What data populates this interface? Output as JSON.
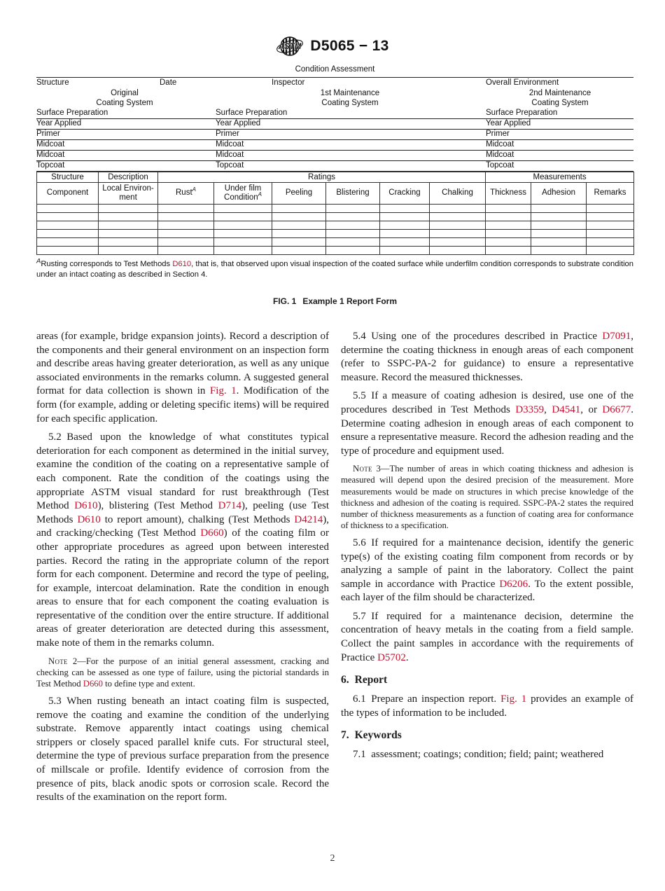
{
  "masthead": {
    "designation": "D5065 − 13"
  },
  "report_form": {
    "title": "Condition Assessment",
    "header_fields": [
      "Structure",
      "Date",
      "Inspector",
      "Overall Environment"
    ],
    "system_headers": [
      {
        "line1": "Original",
        "line2": "Coating System"
      },
      {
        "line1": "1st Maintenance",
        "line2": "Coating System"
      },
      {
        "line1": "2nd Maintenance",
        "line2": "Coating System"
      }
    ],
    "fill_rows": [
      [
        "Surface Preparation",
        "Surface Preparation",
        "Surface Preparation"
      ],
      [
        "Year Applied",
        "Year Applied",
        "Year Applied"
      ],
      [
        "Primer",
        "Primer",
        "Primer"
      ],
      [
        "Midcoat",
        "Midcoat",
        "Midcoat"
      ],
      [
        "Midcoat",
        "Midcoat",
        "Midcoat"
      ],
      [
        "Topcoat",
        "Topcoat",
        "Topcoat"
      ]
    ]
  },
  "ratings_table": {
    "group_headers": [
      "Structure",
      "Description",
      "Ratings",
      "Measurements"
    ],
    "columns": [
      {
        "l1": "Component"
      },
      {
        "l1": "Local Environ-",
        "l2": "ment"
      },
      {
        "l1": "Rust",
        "sup1": "A"
      },
      {
        "l1": "Under film",
        "l2": "Condition",
        "sup2": "A"
      },
      {
        "l1": "Peeling"
      },
      {
        "l1": "Blistering"
      },
      {
        "l1": "Cracking"
      },
      {
        "l1": "Chalking"
      },
      {
        "l1": "Thickness"
      },
      {
        "l1": "Adhesion"
      },
      {
        "l1": "Remarks"
      }
    ],
    "empty_rows": 6
  },
  "footnote": {
    "segments": [
      {
        "t": "A",
        "sup": true
      },
      {
        "t": "Rusting corresponds to Test Methods "
      },
      {
        "t": "D610",
        "link": true
      },
      {
        "t": ", that is, that observed upon visual inspection of the coated surface while underfilm condition corresponds to substrate condition under an intact coating as described in Section 4."
      }
    ]
  },
  "figure_caption": {
    "fig": "FIG. 1",
    "text": "Example 1 Report Form"
  },
  "body": {
    "left": [
      {
        "kind": "cont",
        "segments": [
          {
            "t": "areas (for example, bridge expansion joints). Record a description of the components and their general environment on an inspection form and describe areas having greater deterioration, as well as any unique associated environments in the remarks column. A suggested general format for data collection is shown in "
          },
          {
            "t": "Fig. 1",
            "link": true
          },
          {
            "t": ". Modification of the form (for example, adding or deleting specific items) will be required for each specific application."
          }
        ]
      },
      {
        "kind": "para",
        "segments": [
          {
            "t": "5.2 Based upon the knowledge of what constitutes typical deterioration for each component as determined in the initial survey, examine the condition of the coating on a representative sample of each component. Rate the condition of the coatings using the appropriate ASTM visual standard for rust breakthrough (Test Method "
          },
          {
            "t": "D610",
            "link": true
          },
          {
            "t": "), blistering (Test Method "
          },
          {
            "t": "D714",
            "link": true
          },
          {
            "t": "), peeling (use Test Methods "
          },
          {
            "t": "D610",
            "link": true
          },
          {
            "t": " to report amount), chalking (Test Methods "
          },
          {
            "t": "D4214",
            "link": true
          },
          {
            "t": "), and cracking/checking (Test Method "
          },
          {
            "t": "D660",
            "link": true
          },
          {
            "t": ") of the coating film or other appropriate procedures as agreed upon between interested parties. Record the rating in the appropriate column of the report form for each component. Determine and record the type of peeling, for example, intercoat delamination. Rate the condition in enough areas to ensure that for each component the coating evaluation is representative of the condition over the entire structure. If additional areas of greater deterioration are detected during this assessment, make note of them in the remarks column."
          }
        ]
      },
      {
        "kind": "note",
        "segments": [
          {
            "t": "Note",
            "sc": true
          },
          {
            "t": " 2—For the purpose of an initial general assessment, cracking and checking can be assessed as one type of failure, using the pictorial standards in Test Method "
          },
          {
            "t": "D660",
            "link": true
          },
          {
            "t": " to define type and extent."
          }
        ]
      },
      {
        "kind": "para",
        "segments": [
          {
            "t": "5.3 When rusting beneath an intact coating film is suspected, remove the coating and examine the condition of the underlying substrate. Remove apparently intact coatings using chemical strippers or closely spaced parallel knife cuts. For structural steel, determine the type of previous surface preparation from the presence of millscale or profile. Identify evidence of corrosion from the presence of pits, black anodic spots or corrosion scale. Record the results of the examination on the report form."
          }
        ]
      }
    ],
    "right": [
      {
        "kind": "para",
        "segments": [
          {
            "t": "5.4 Using one of the procedures described in Practice "
          },
          {
            "t": "D7091",
            "link": true
          },
          {
            "t": ", determine the coating thickness in enough areas of each component (refer to SSPC-PA-2 for guidance) to ensure a representative measure. Record the measured thicknesses."
          }
        ]
      },
      {
        "kind": "para",
        "segments": [
          {
            "t": "5.5 If a measure of coating adhesion is desired, use one of the procedures described in Test Methods "
          },
          {
            "t": "D3359",
            "link": true
          },
          {
            "t": ", "
          },
          {
            "t": "D4541",
            "link": true
          },
          {
            "t": ", or "
          },
          {
            "t": "D6677",
            "link": true
          },
          {
            "t": ". Determine coating adhesion in enough areas of each component to ensure a representative measure. Record the adhesion reading and the type of procedure and equipment used."
          }
        ]
      },
      {
        "kind": "note",
        "segments": [
          {
            "t": "Note",
            "sc": true
          },
          {
            "t": " 3—The number of areas in which coating thickness and adhesion is measured will depend upon the desired precision of the measurement. More measurements would be made on structures in which precise knowledge of the thickness and adhesion of the coating is required. SSPC-PA-2 states the required number of thickness measurements as a function of coating area for conformance of thickness to a specification."
          }
        ]
      },
      {
        "kind": "para",
        "segments": [
          {
            "t": "5.6 If required for a maintenance decision, identify the generic type(s) of the existing coating film component from records or by analyzing a sample of paint in the laboratory. Collect the paint sample in accordance with Practice "
          },
          {
            "t": "D6206",
            "link": true
          },
          {
            "t": ". To the extent possible, each layer of the film should be characterized."
          }
        ]
      },
      {
        "kind": "para",
        "segments": [
          {
            "t": "5.7 If required for a maintenance decision, determine the concentration of heavy metals in the coating from a field sample. Collect the paint samples in accordance with the requirements of Practice "
          },
          {
            "t": "D5702",
            "link": true
          },
          {
            "t": "."
          }
        ]
      },
      {
        "kind": "heading",
        "num": "6.",
        "label": "Report"
      },
      {
        "kind": "para",
        "segments": [
          {
            "t": "6.1 Prepare an inspection report. "
          },
          {
            "t": "Fig. 1",
            "link": true
          },
          {
            "t": " provides an example of the types of information to be included."
          }
        ]
      },
      {
        "kind": "heading",
        "num": "7.",
        "label": "Keywords"
      },
      {
        "kind": "para",
        "segments": [
          {
            "t": "7.1 assessment; coatings; condition; field; paint; weathered"
          }
        ]
      }
    ]
  },
  "footer": {
    "page_number": "2"
  }
}
